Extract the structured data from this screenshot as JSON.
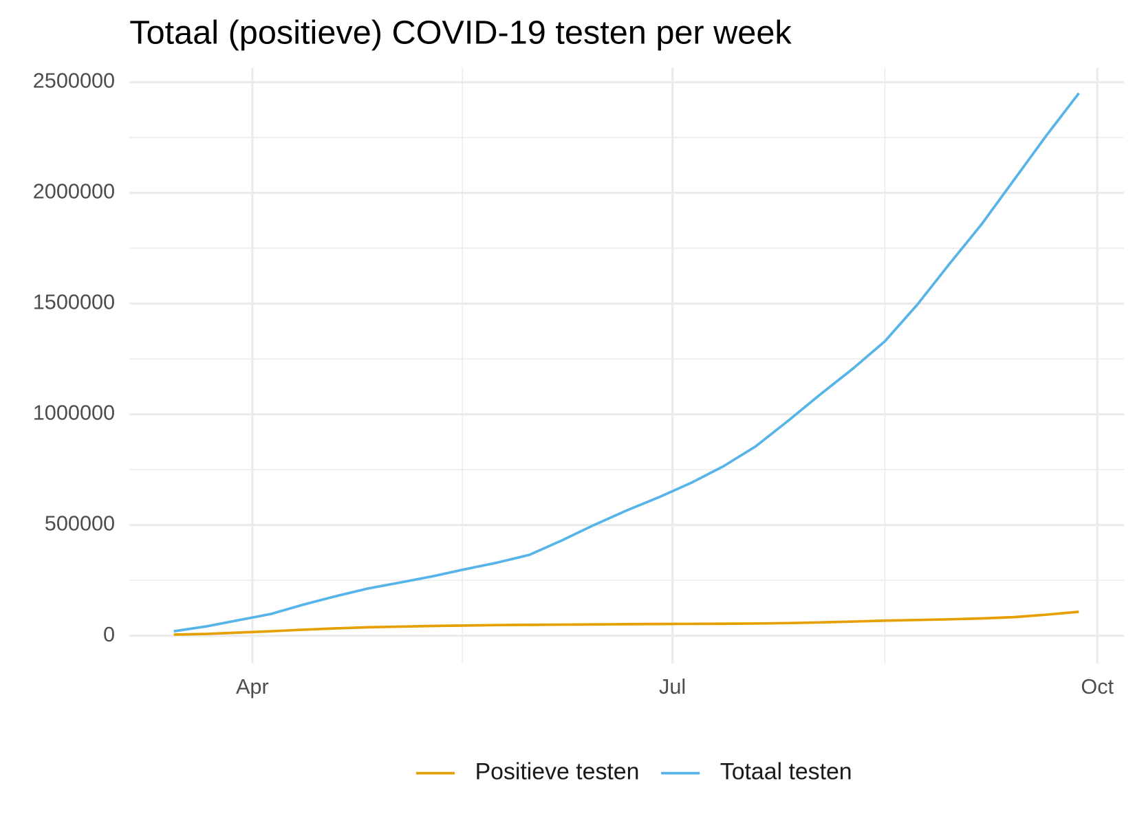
{
  "chart_data": {
    "type": "line",
    "title": "Totaal (positieve) COVID-19 testen per week",
    "x": [
      75,
      82,
      89,
      96,
      103,
      110,
      117,
      124,
      131,
      138,
      145,
      152,
      159,
      166,
      173,
      180,
      187,
      194,
      201,
      208,
      215,
      222,
      229,
      236,
      243,
      250,
      257,
      264,
      271
    ],
    "xlim": [
      65.4,
      280.8
    ],
    "xticks": [
      {
        "value": 92,
        "label": "Apr"
      },
      {
        "value": 183,
        "label": "Jul"
      },
      {
        "value": 275,
        "label": "Oct"
      }
    ],
    "ylim": [
      -125000,
      2565000
    ],
    "yticks": [
      0,
      500000,
      1000000,
      1500000,
      2000000,
      2500000
    ],
    "grid": true,
    "legend": "bottom",
    "series": [
      {
        "name": "Positieve testen",
        "color": "#E69F00",
        "values": [
          5000,
          8000,
          14000,
          20000,
          27000,
          33000,
          38000,
          41000,
          44000,
          46000,
          48000,
          49000,
          50000,
          51000,
          52000,
          53000,
          53500,
          54000,
          55000,
          57000,
          60000,
          64000,
          68000,
          71000,
          74000,
          78000,
          84000,
          95000,
          108000
        ]
      },
      {
        "name": "Totaal testen",
        "color": "#56B4E9",
        "values": [
          20000,
          42000,
          70000,
          98000,
          140000,
          178000,
          213000,
          240000,
          268000,
          300000,
          330000,
          365000,
          430000,
          500000,
          565000,
          625000,
          690000,
          765000,
          855000,
          970000,
          1090000,
          1205000,
          1330000,
          1495000,
          1680000,
          1860000,
          2060000,
          2260000,
          2450000
        ]
      }
    ]
  }
}
